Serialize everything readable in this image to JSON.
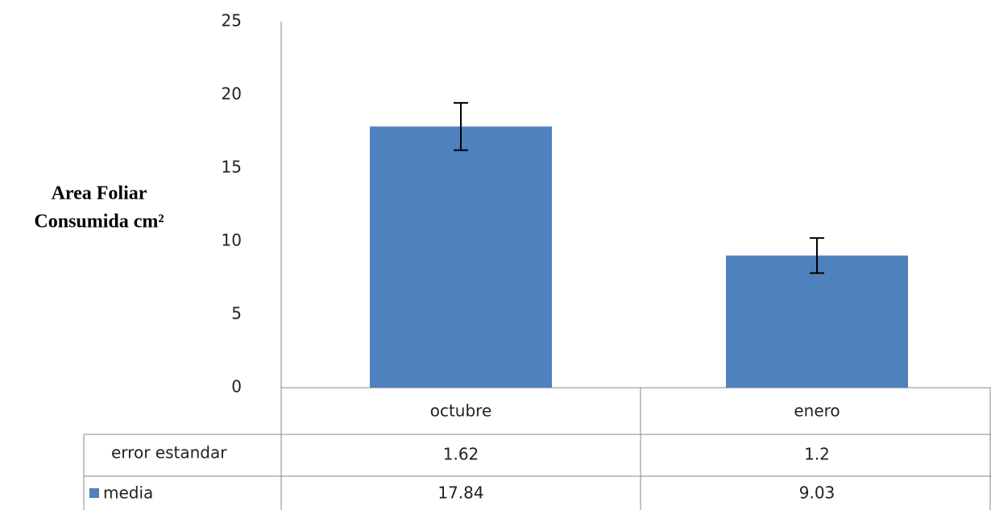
{
  "chart_data": {
    "type": "bar",
    "ylabel": [
      "Area Foliar",
      "Consumida cm²"
    ],
    "categories": [
      "octubre",
      "enero"
    ],
    "series": [
      {
        "name": "media",
        "color": "#4f81bd",
        "values": [
          17.84,
          9.03
        ]
      }
    ],
    "errors": {
      "name": "error estandar",
      "values": [
        1.62,
        1.2
      ]
    },
    "ylim": [
      0,
      25
    ],
    "yticks": [
      0,
      5,
      10,
      15,
      20,
      25
    ],
    "grid": false
  }
}
